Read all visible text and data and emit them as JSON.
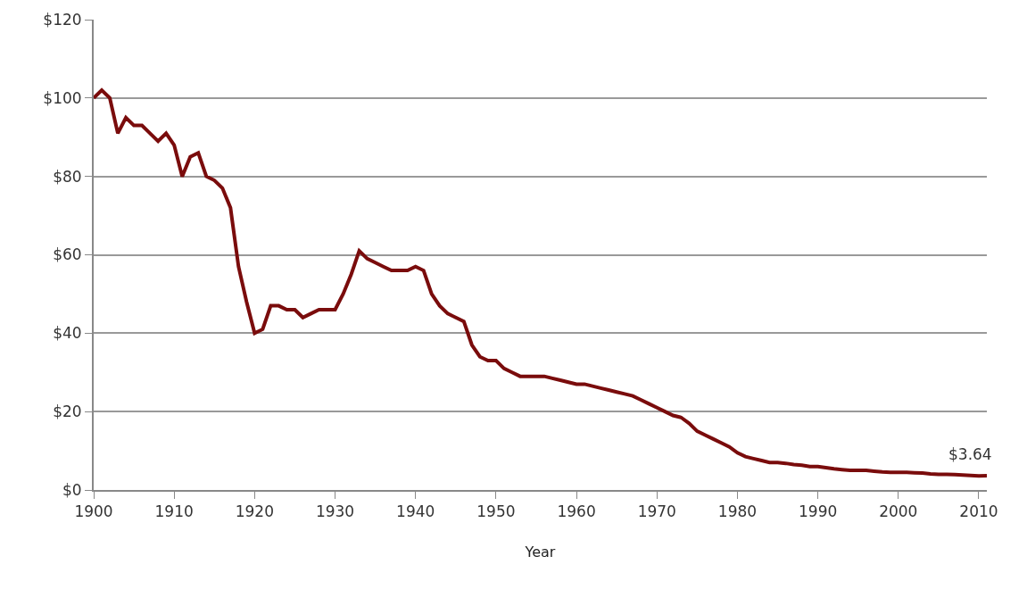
{
  "chart_data": {
    "type": "line",
    "xlabel": "Year",
    "x": [
      1900,
      1901,
      1902,
      1903,
      1904,
      1905,
      1906,
      1907,
      1908,
      1909,
      1910,
      1911,
      1912,
      1913,
      1914,
      1915,
      1916,
      1917,
      1918,
      1919,
      1920,
      1921,
      1922,
      1923,
      1924,
      1925,
      1926,
      1927,
      1928,
      1929,
      1930,
      1931,
      1932,
      1933,
      1934,
      1935,
      1936,
      1937,
      1938,
      1939,
      1940,
      1941,
      1942,
      1943,
      1944,
      1945,
      1946,
      1947,
      1948,
      1949,
      1950,
      1951,
      1952,
      1953,
      1954,
      1955,
      1956,
      1957,
      1958,
      1959,
      1960,
      1961,
      1962,
      1963,
      1964,
      1965,
      1966,
      1967,
      1968,
      1969,
      1970,
      1971,
      1972,
      1973,
      1974,
      1975,
      1976,
      1977,
      1978,
      1979,
      1980,
      1981,
      1982,
      1983,
      1984,
      1985,
      1986,
      1987,
      1988,
      1989,
      1990,
      1991,
      1992,
      1993,
      1994,
      1995,
      1996,
      1997,
      1998,
      1999,
      2000,
      2001,
      2002,
      2003,
      2004,
      2005,
      2006,
      2007,
      2008,
      2009,
      2010,
      2011
    ],
    "series": [
      {
        "color": "#7a0c0c",
        "values": [
          100,
          102,
          100,
          91,
          95,
          93,
          93,
          91,
          89,
          91,
          88,
          80,
          85,
          86,
          80,
          79,
          77,
          72,
          57,
          48,
          40,
          41,
          47,
          47,
          46,
          46,
          44,
          45,
          46,
          46,
          46,
          50,
          55,
          61,
          59,
          58,
          57,
          56,
          56,
          56,
          57,
          56,
          50,
          47,
          45,
          44,
          43,
          37,
          34,
          33,
          33,
          31,
          30,
          29,
          29,
          29,
          29,
          28.5,
          28,
          27.5,
          27,
          27,
          26.5,
          26,
          25.5,
          25,
          24.5,
          24,
          23,
          22,
          21,
          20,
          19,
          18.5,
          17,
          15,
          14,
          13,
          12,
          11,
          9.5,
          8.5,
          8,
          7.5,
          7,
          7,
          6.8,
          6.5,
          6.3,
          6,
          6,
          5.7,
          5.4,
          5.2,
          5,
          5,
          5,
          4.8,
          4.6,
          4.5,
          4.5,
          4.5,
          4.4,
          4.3,
          4.1,
          4,
          4,
          3.9,
          3.8,
          3.7,
          3.6,
          3.64
        ]
      }
    ],
    "annotations": [
      {
        "text": "$3.64",
        "x": 2011,
        "y": 3.64
      }
    ],
    "xlim": [
      1900,
      2011
    ],
    "xticks": [
      1900,
      1910,
      1920,
      1930,
      1940,
      1950,
      1960,
      1970,
      1980,
      1990,
      2000,
      2010
    ],
    "ylim": [
      0,
      120
    ],
    "yticks": [
      {
        "value": 0,
        "label": "$0"
      },
      {
        "value": 20,
        "label": "$20"
      },
      {
        "value": 40,
        "label": "$40"
      },
      {
        "value": 60,
        "label": "$60"
      },
      {
        "value": 80,
        "label": "$80"
      },
      {
        "value": 100,
        "label": "$100"
      },
      {
        "value": 120,
        "label": "$120"
      }
    ],
    "grid": "y",
    "marker": "none",
    "line_style": "solid"
  }
}
